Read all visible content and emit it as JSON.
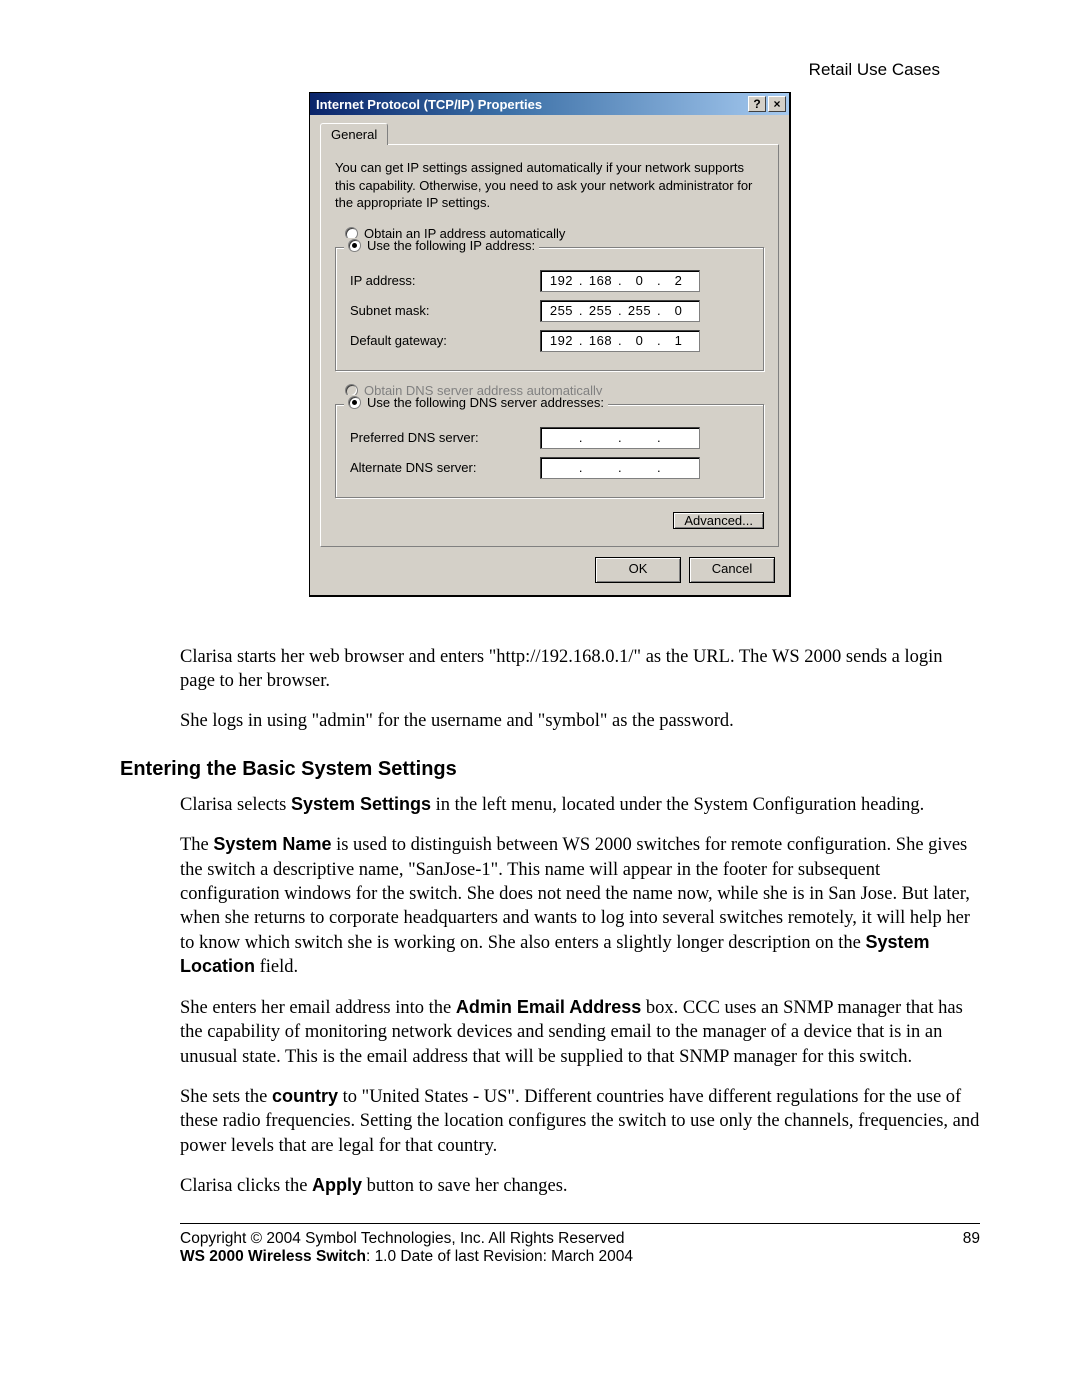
{
  "header": {
    "right": "Retail Use Cases"
  },
  "dialog": {
    "title": "Internet Protocol (TCP/IP) Properties",
    "help_btn": "?",
    "close_btn": "×",
    "tab": "General",
    "intro": "You can get IP settings assigned automatically if your network supports this capability. Otherwise, you need to ask your network administrator for the appropriate IP settings.",
    "radio_auto_ip": "Obtain an IP address automatically",
    "radio_use_ip": "Use the following IP address:",
    "ip_label": "IP address:",
    "ip": [
      "192",
      "168",
      "0",
      "2"
    ],
    "subnet_label": "Subnet mask:",
    "subnet": [
      "255",
      "255",
      "255",
      "0"
    ],
    "gateway_label": "Default gateway:",
    "gateway": [
      "192",
      "168",
      "0",
      "1"
    ],
    "radio_auto_dns": "Obtain DNS server address automatically",
    "radio_use_dns": "Use the following DNS server addresses:",
    "pref_dns_label": "Preferred DNS server:",
    "pref_dns": [
      "",
      "",
      "",
      ""
    ],
    "alt_dns_label": "Alternate DNS server:",
    "alt_dns": [
      "",
      "",
      "",
      ""
    ],
    "advanced_btn": "Advanced...",
    "ok_btn": "OK",
    "cancel_btn": "Cancel"
  },
  "doc": {
    "p1a": "Clarisa starts her web browser and enters \"http://192.168.0.1/\" as the URL. The WS 2000 sends a login page to her browser.",
    "p1b": "She logs in using \"admin\" for the username and \"symbol\" as the password.",
    "h2": "Entering the Basic System Settings",
    "p2_pre": "Clarisa selects ",
    "p2_bold": "System Settings",
    "p2_post": " in the left menu, located under the System Configuration heading.",
    "p3_pre": "The ",
    "p3_bold1": "System Name",
    "p3_mid": " is used to distinguish between WS 2000 switches for remote configuration. She gives the switch a descriptive name, \"SanJose-1\". This name will appear in the footer for subsequent configuration windows for the switch. She does not need the name now, while she is in San Jose. But later, when she returns to corporate headquarters and wants to log into several switches remotely, it will help her to know which switch she is working on. She also enters a slightly longer description on the ",
    "p3_bold2": "System Location",
    "p3_post": " field.",
    "p4_pre": "She enters her email address into the ",
    "p4_bold": "Admin Email Address",
    "p4_post": " box. CCC uses an SNMP manager that has the capability of monitoring network devices and sending email to the manager of a device that is in an unusual state. This is the email address that will be supplied to that SNMP manager for this switch.",
    "p5_pre": "She sets the ",
    "p5_bold": "country",
    "p5_post": " to \"United States - US\". Different countries have different regulations for the use of these radio frequencies. Setting the location configures the switch to use only the channels, frequencies, and power levels that are legal for that country.",
    "p6_pre": "Clarisa clicks the ",
    "p6_bold": "Apply",
    "p6_post": " button to save her changes."
  },
  "footer": {
    "copyright": "Copyright © 2004 Symbol Technologies, Inc. All Rights Reserved",
    "page": "89",
    "line2_bold": "WS 2000 Wireless Switch",
    "line2_rest": ": 1.0  Date of last Revision: March 2004"
  },
  "colors": {
    "titlebar_start": "#0a246a",
    "titlebar_end": "#a6caf0",
    "dialog_bg": "#d4d0c8",
    "page_bg": "#ffffff",
    "text": "#000000",
    "disabled": "#808080"
  }
}
